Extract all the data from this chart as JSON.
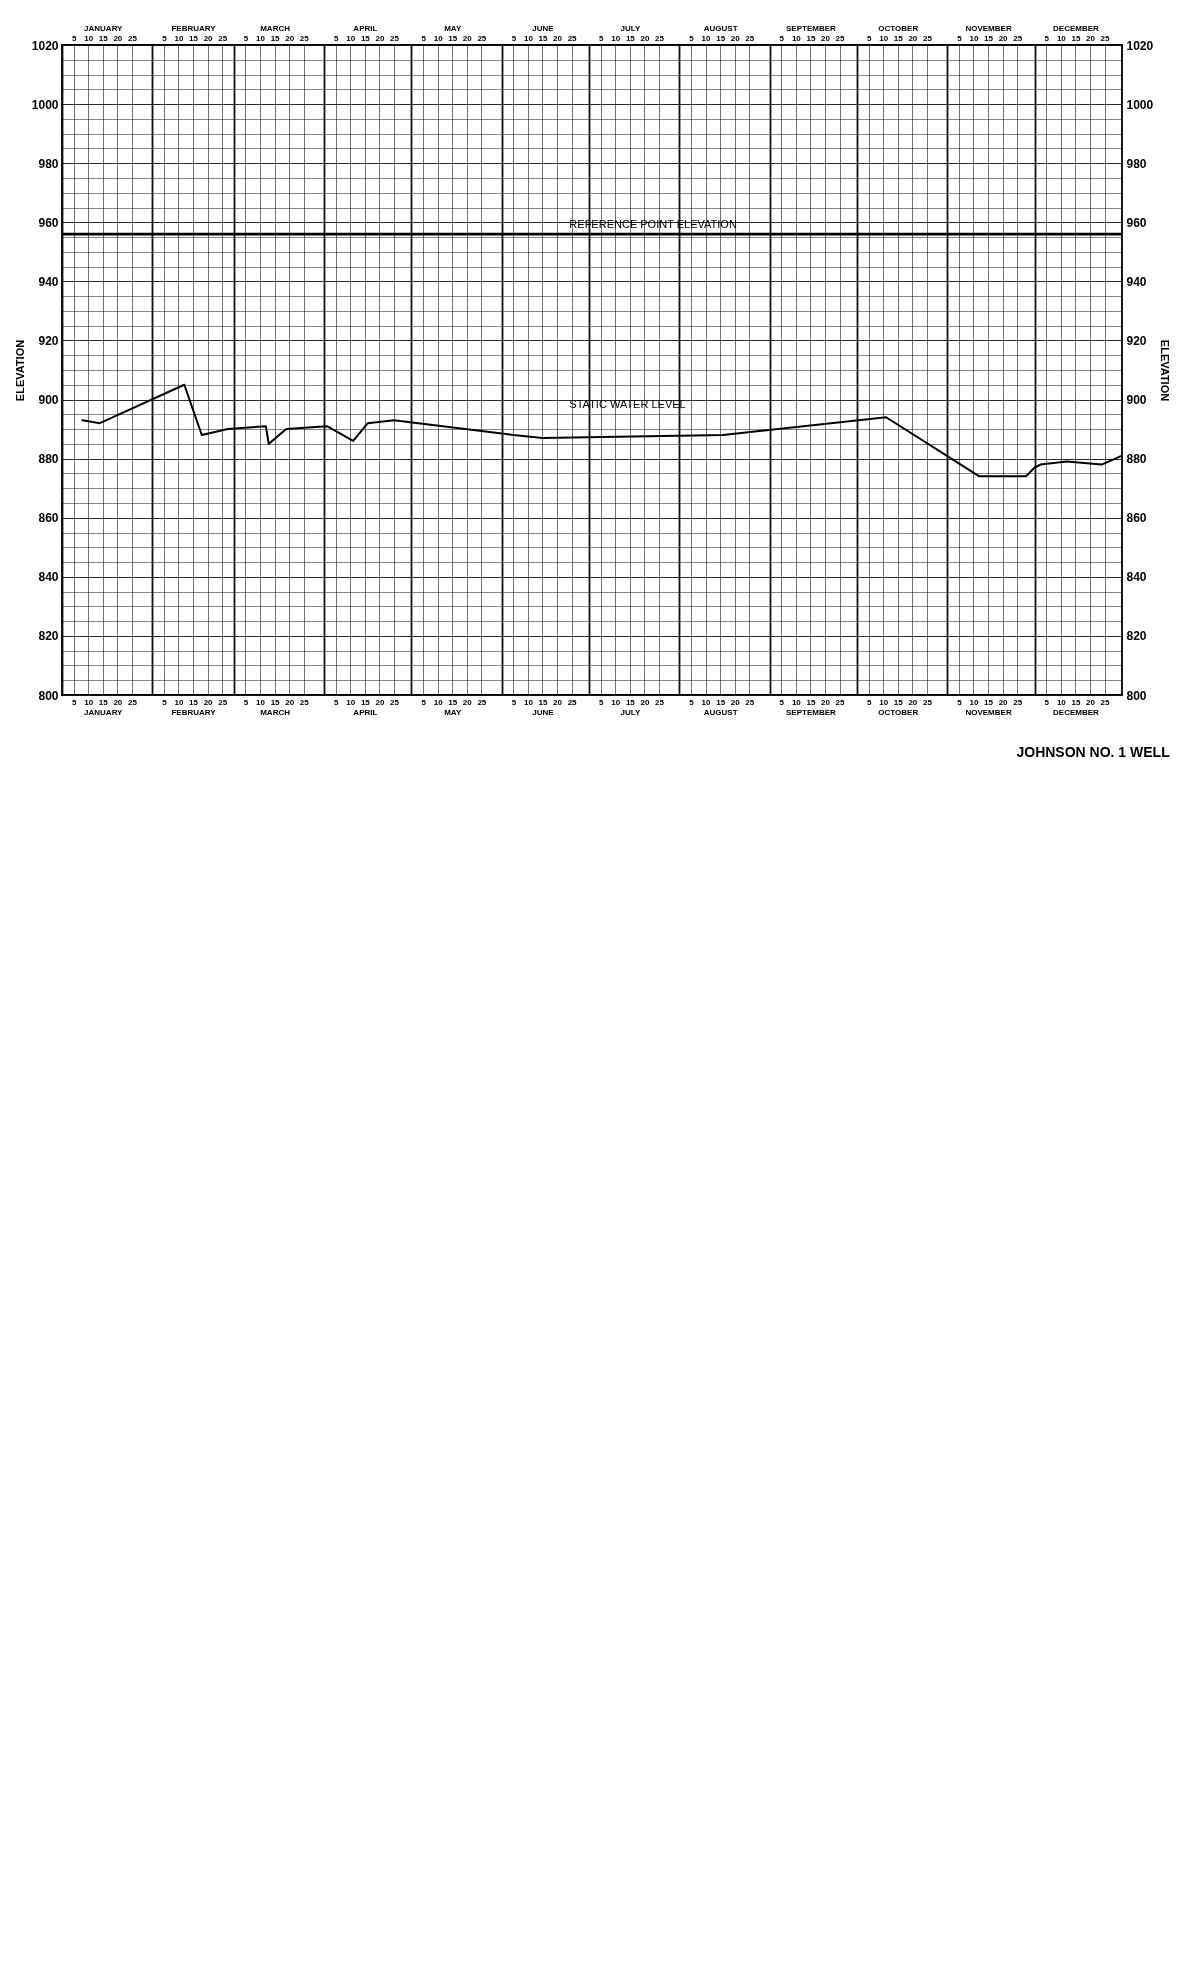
{
  "chart_data": {
    "type": "line",
    "title": "JOHNSON NO. 1 WELL",
    "ylabel": "ELEVATION",
    "y2label": "ELEVATION",
    "legend": false,
    "grid": true,
    "x": [
      "--01-08",
      "--01-14",
      "--02-12",
      "--02-18",
      "--02-27",
      "--03-12",
      "--03-13",
      "--03-19",
      "--04-02",
      "--04-11",
      "--04-16",
      "--04-25",
      "--06-05",
      "--06-15",
      "--08-16",
      "--10-11",
      "--11-12",
      "--11-28",
      "--12-01",
      "--12-03",
      "--12-12",
      "--12-24",
      "--12-31"
    ],
    "series": [
      {
        "name": "STATIC WATER LEVEL",
        "color": "#000000",
        "values": [
          893,
          892,
          905,
          888,
          890,
          891,
          885,
          890,
          891,
          886,
          892,
          893,
          888,
          887,
          888,
          894,
          874,
          874,
          877,
          878,
          879,
          878,
          881
        ]
      }
    ],
    "ref_lines": [
      {
        "axis": "y",
        "value": 956,
        "label": "REFERENCE POINT ELEVATION",
        "color": "#000000"
      }
    ],
    "xlim": [
      "--01-01",
      "--12-31"
    ],
    "x2lim": [
      "--01-01",
      "--12-31"
    ],
    "ylim": [
      800,
      1020
    ],
    "y2lim": [
      800,
      1020
    ],
    "yticks": [
      800,
      {
        "value": 805,
        "label": null
      },
      {
        "value": 810,
        "label": null
      },
      {
        "value": 815,
        "label": null
      },
      820,
      {
        "value": 825,
        "label": null
      },
      {
        "value": 830,
        "label": null
      },
      {
        "value": 835,
        "label": null
      },
      840,
      {
        "value": 845,
        "label": null
      },
      {
        "value": 850,
        "label": null
      },
      {
        "value": 855,
        "label": null
      },
      860,
      {
        "value": 865,
        "label": null
      },
      {
        "value": 870,
        "label": null
      },
      {
        "value": 875,
        "label": null
      },
      880,
      {
        "value": 885,
        "label": null
      },
      {
        "value": 890,
        "label": null
      },
      {
        "value": 895,
        "label": null
      },
      900,
      {
        "value": 905,
        "label": null
      },
      {
        "value": 910,
        "label": null
      },
      {
        "value": 915,
        "label": null
      },
      920,
      {
        "value": 925,
        "label": null
      },
      {
        "value": 930,
        "label": null
      },
      {
        "value": 935,
        "label": null
      },
      940,
      {
        "value": 945,
        "label": null
      },
      {
        "value": 950,
        "label": null
      },
      {
        "value": 955,
        "label": null
      },
      960,
      {
        "value": 965,
        "label": null
      },
      {
        "value": 970,
        "label": null
      },
      {
        "value": 975,
        "label": null
      },
      980,
      {
        "value": 985,
        "label": null
      },
      {
        "value": 990,
        "label": null
      },
      {
        "value": 995,
        "label": null
      },
      1000,
      {
        "value": 1005,
        "label": null
      },
      {
        "value": 1010,
        "label": null
      },
      {
        "value": 1015,
        "label": null
      },
      1020
    ],
    "y2ticks": [
      800,
      820,
      840,
      860,
      880,
      900,
      920,
      940,
      960,
      980,
      1000,
      1020
    ],
    "xticks": [
      {
        "value": "--01-01",
        "label": null
      },
      {
        "value": "--01-05",
        "label": "5"
      },
      {
        "value": "--01-10",
        "label": "10"
      },
      {
        "value": "--01-15",
        "label": "15\nJANUARY"
      },
      {
        "value": "--01-20",
        "label": "20"
      },
      {
        "value": "--01-25",
        "label": "25"
      },
      {
        "value": "--02-01",
        "label": null
      },
      {
        "value": "--02-05",
        "label": "5"
      },
      {
        "value": "--02-10",
        "label": "10"
      },
      {
        "value": "--02-15",
        "label": "15\nFEBRUARY"
      },
      {
        "value": "--02-20",
        "label": "20"
      },
      {
        "value": "--02-25",
        "label": "25"
      },
      {
        "value": "--03-01",
        "label": null
      },
      {
        "value": "--03-05",
        "label": "5"
      },
      {
        "value": "--03-10",
        "label": "10"
      },
      {
        "value": "--03-15",
        "label": "15\nMARCH"
      },
      {
        "value": "--03-20",
        "label": "20"
      },
      {
        "value": "--03-25",
        "label": "25"
      },
      {
        "value": "--04-01",
        "label": null
      },
      {
        "value": "--04-05",
        "label": "5"
      },
      {
        "value": "--04-10",
        "label": "10"
      },
      {
        "value": "--04-15",
        "label": "15\nAPRIL"
      },
      {
        "value": "--04-20",
        "label": "20"
      },
      {
        "value": "--04-25",
        "label": "25"
      },
      {
        "value": "--05-01",
        "label": null
      },
      {
        "value": "--05-05",
        "label": "5"
      },
      {
        "value": "--05-10",
        "label": "10"
      },
      {
        "value": "--05-15",
        "label": "15\nMAY"
      },
      {
        "value": "--05-20",
        "label": "20"
      },
      {
        "value": "--05-25",
        "label": "25"
      },
      {
        "value": "--06-01",
        "label": null
      },
      {
        "value": "--06-05",
        "label": "5"
      },
      {
        "value": "--06-10",
        "label": "10"
      },
      {
        "value": "--06-15",
        "label": "15\nJUNE"
      },
      {
        "value": "--06-20",
        "label": "20"
      },
      {
        "value": "--06-25",
        "label": "25"
      },
      {
        "value": "--07-01",
        "label": null
      },
      {
        "value": "--07-05",
        "label": "5"
      },
      {
        "value": "--07-10",
        "label": "10"
      },
      {
        "value": "--07-15",
        "label": "15\nJULY"
      },
      {
        "value": "--07-20",
        "label": "20"
      },
      {
        "value": "--07-25",
        "label": "25"
      },
      {
        "value": "--08-01",
        "label": null
      },
      {
        "value": "--08-05",
        "label": "5"
      },
      {
        "value": "--08-10",
        "label": "10"
      },
      {
        "value": "--08-15",
        "label": "15\nAUGUST"
      },
      {
        "value": "--08-20",
        "label": "20"
      },
      {
        "value": "--08-25",
        "label": "25"
      },
      {
        "value": "--09-01",
        "label": null
      },
      {
        "value": "--09-05",
        "label": "5"
      },
      {
        "value": "--09-10",
        "label": "10"
      },
      {
        "value": "--09-15",
        "label": "15\nSEPTEMBER"
      },
      {
        "value": "--09-20",
        "label": "20"
      },
      {
        "value": "--09-25",
        "label": "25"
      },
      {
        "value": "--10-01",
        "label": null
      },
      {
        "value": "--10-05",
        "label": "5"
      },
      {
        "value": "--10-10",
        "label": "10"
      },
      {
        "value": "--10-15",
        "label": "15\nOCTOBER"
      },
      {
        "value": "--10-20",
        "label": "20"
      },
      {
        "value": "--10-25",
        "label": "25"
      },
      {
        "value": "--11-01",
        "label": null
      },
      {
        "value": "--11-05",
        "label": "5"
      },
      {
        "value": "--11-10",
        "label": "10"
      },
      {
        "value": "--11-15",
        "label": "15\nNOVEMBER"
      },
      {
        "value": "--11-20",
        "label": "20"
      },
      {
        "value": "--11-25",
        "label": "25"
      },
      {
        "value": "--12-01",
        "label": null
      },
      {
        "value": "--12-05",
        "label": "5"
      },
      {
        "value": "--12-10",
        "label": "10"
      },
      {
        "value": "--12-15",
        "label": "15\nDECEMBER"
      },
      {
        "value": "--12-20",
        "label": "20"
      },
      {
        "value": "--12-25",
        "label": "25"
      }
    ],
    "x2ticks": [
      {
        "value": "--01-05",
        "label": "5"
      },
      {
        "value": "--01-10",
        "label": "10"
      },
      {
        "value": "--01-15",
        "label": "JANUARY\n15"
      },
      {
        "value": "--01-20",
        "label": "20"
      },
      {
        "value": "--01-25",
        "label": "25"
      },
      {
        "value": "--02-05",
        "label": "5"
      },
      {
        "value": "--02-10",
        "label": "10"
      },
      {
        "value": "--02-15",
        "label": "FEBRUARY\n15"
      },
      {
        "value": "--02-20",
        "label": "20"
      },
      {
        "value": "--02-25",
        "label": "25"
      },
      {
        "value": "--03-05",
        "label": "5"
      },
      {
        "value": "--03-10",
        "label": "10"
      },
      {
        "value": "--03-15",
        "label": "MARCH\n15"
      },
      {
        "value": "--03-20",
        "label": "20"
      },
      {
        "value": "--03-25",
        "label": "25"
      },
      {
        "value": "--04-05",
        "label": "5"
      },
      {
        "value": "--04-10",
        "label": "10"
      },
      {
        "value": "--04-15",
        "label": "APRIL\n15"
      },
      {
        "value": "--04-20",
        "label": "20"
      },
      {
        "value": "--04-25",
        "label": "25"
      },
      {
        "value": "--05-05",
        "label": "5"
      },
      {
        "value": "--05-10",
        "label": "10"
      },
      {
        "value": "--05-15",
        "label": "MAY\n15"
      },
      {
        "value": "--05-20",
        "label": "20"
      },
      {
        "value": "--05-25",
        "label": "25"
      },
      {
        "value": "--06-05",
        "label": "5"
      },
      {
        "value": "--06-10",
        "label": "10"
      },
      {
        "value": "--06-15",
        "label": "JUNE\n15"
      },
      {
        "value": "--06-20",
        "label": "20"
      },
      {
        "value": "--06-25",
        "label": "25"
      },
      {
        "value": "--07-05",
        "label": "5"
      },
      {
        "value": "--07-10",
        "label": "10"
      },
      {
        "value": "--07-15",
        "label": "JULY\n15"
      },
      {
        "value": "--07-20",
        "label": "20"
      },
      {
        "value": "--07-25",
        "label": "25"
      },
      {
        "value": "--08-05",
        "label": "5"
      },
      {
        "value": "--08-10",
        "label": "10"
      },
      {
        "value": "--08-15",
        "label": "AUGUST\n15"
      },
      {
        "value": "--08-20",
        "label": "20"
      },
      {
        "value": "--08-25",
        "label": "25"
      },
      {
        "value": "--09-05",
        "label": "5"
      },
      {
        "value": "--09-10",
        "label": "10"
      },
      {
        "value": "--09-15",
        "label": "SEPTEMBER\n15"
      },
      {
        "value": "--09-20",
        "label": "20"
      },
      {
        "value": "--09-25",
        "label": "25"
      },
      {
        "value": "--10-05",
        "label": "5"
      },
      {
        "value": "--10-10",
        "label": "10"
      },
      {
        "value": "--10-15",
        "label": "OCTOBER\n15"
      },
      {
        "value": "--10-20",
        "label": "20"
      },
      {
        "value": "--10-25",
        "label": "25"
      },
      {
        "value": "--11-05",
        "label": "5"
      },
      {
        "value": "--11-10",
        "label": "10"
      },
      {
        "value": "--11-15",
        "label": "NOVEMBER\n15"
      },
      {
        "value": "--11-20",
        "label": "20"
      },
      {
        "value": "--11-25",
        "label": "25"
      },
      {
        "value": "--12-05",
        "label": "5"
      },
      {
        "value": "--12-10",
        "label": "10"
      },
      {
        "value": "--12-15",
        "label": "DECEMBER\n15"
      },
      {
        "value": "--12-20",
        "label": "20"
      },
      {
        "value": "--12-25",
        "label": "25"
      }
    ]
  }
}
